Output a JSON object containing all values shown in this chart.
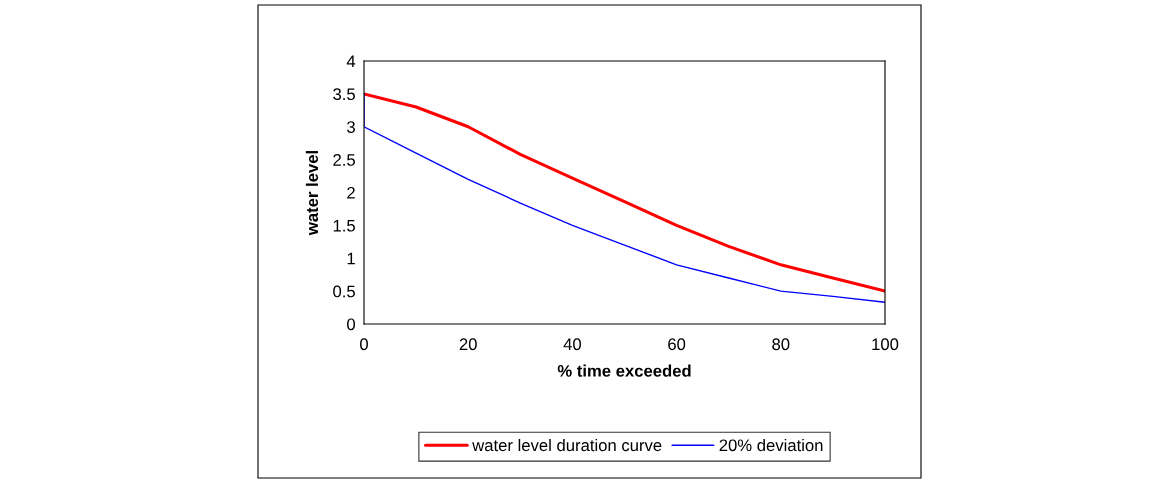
{
  "chart_data": {
    "type": "line",
    "xlabel": "% time exceeded",
    "ylabel": "water level",
    "xlim": [
      0,
      100
    ],
    "xticks": [
      0,
      20,
      40,
      60,
      80,
      100
    ],
    "ylim": [
      0,
      4
    ],
    "yticks": [
      0,
      0.5,
      1,
      1.5,
      2,
      2.5,
      3,
      3.5,
      4
    ],
    "grid": false,
    "legend": "bottom",
    "marker": "none",
    "line_style": "solid",
    "series": [
      {
        "name": "water level duration curve",
        "color": "#ff0000",
        "x": [
          0,
          10,
          20,
          30,
          40,
          50,
          60,
          70,
          80,
          90,
          100
        ],
        "values": [
          3.5,
          3.3,
          3.0,
          2.58,
          2.22,
          1.86,
          1.5,
          1.18,
          0.9,
          0.7,
          0.5
        ]
      },
      {
        "name": "20% deviation",
        "color": "#0000ff",
        "x": [
          0,
          0,
          10,
          20,
          30,
          40,
          50,
          60,
          70,
          80,
          90,
          100
        ],
        "values": [
          3.5,
          3.0,
          2.6,
          2.2,
          1.84,
          1.5,
          1.2,
          0.9,
          0.7,
          0.5,
          0.42,
          0.33
        ]
      }
    ]
  }
}
